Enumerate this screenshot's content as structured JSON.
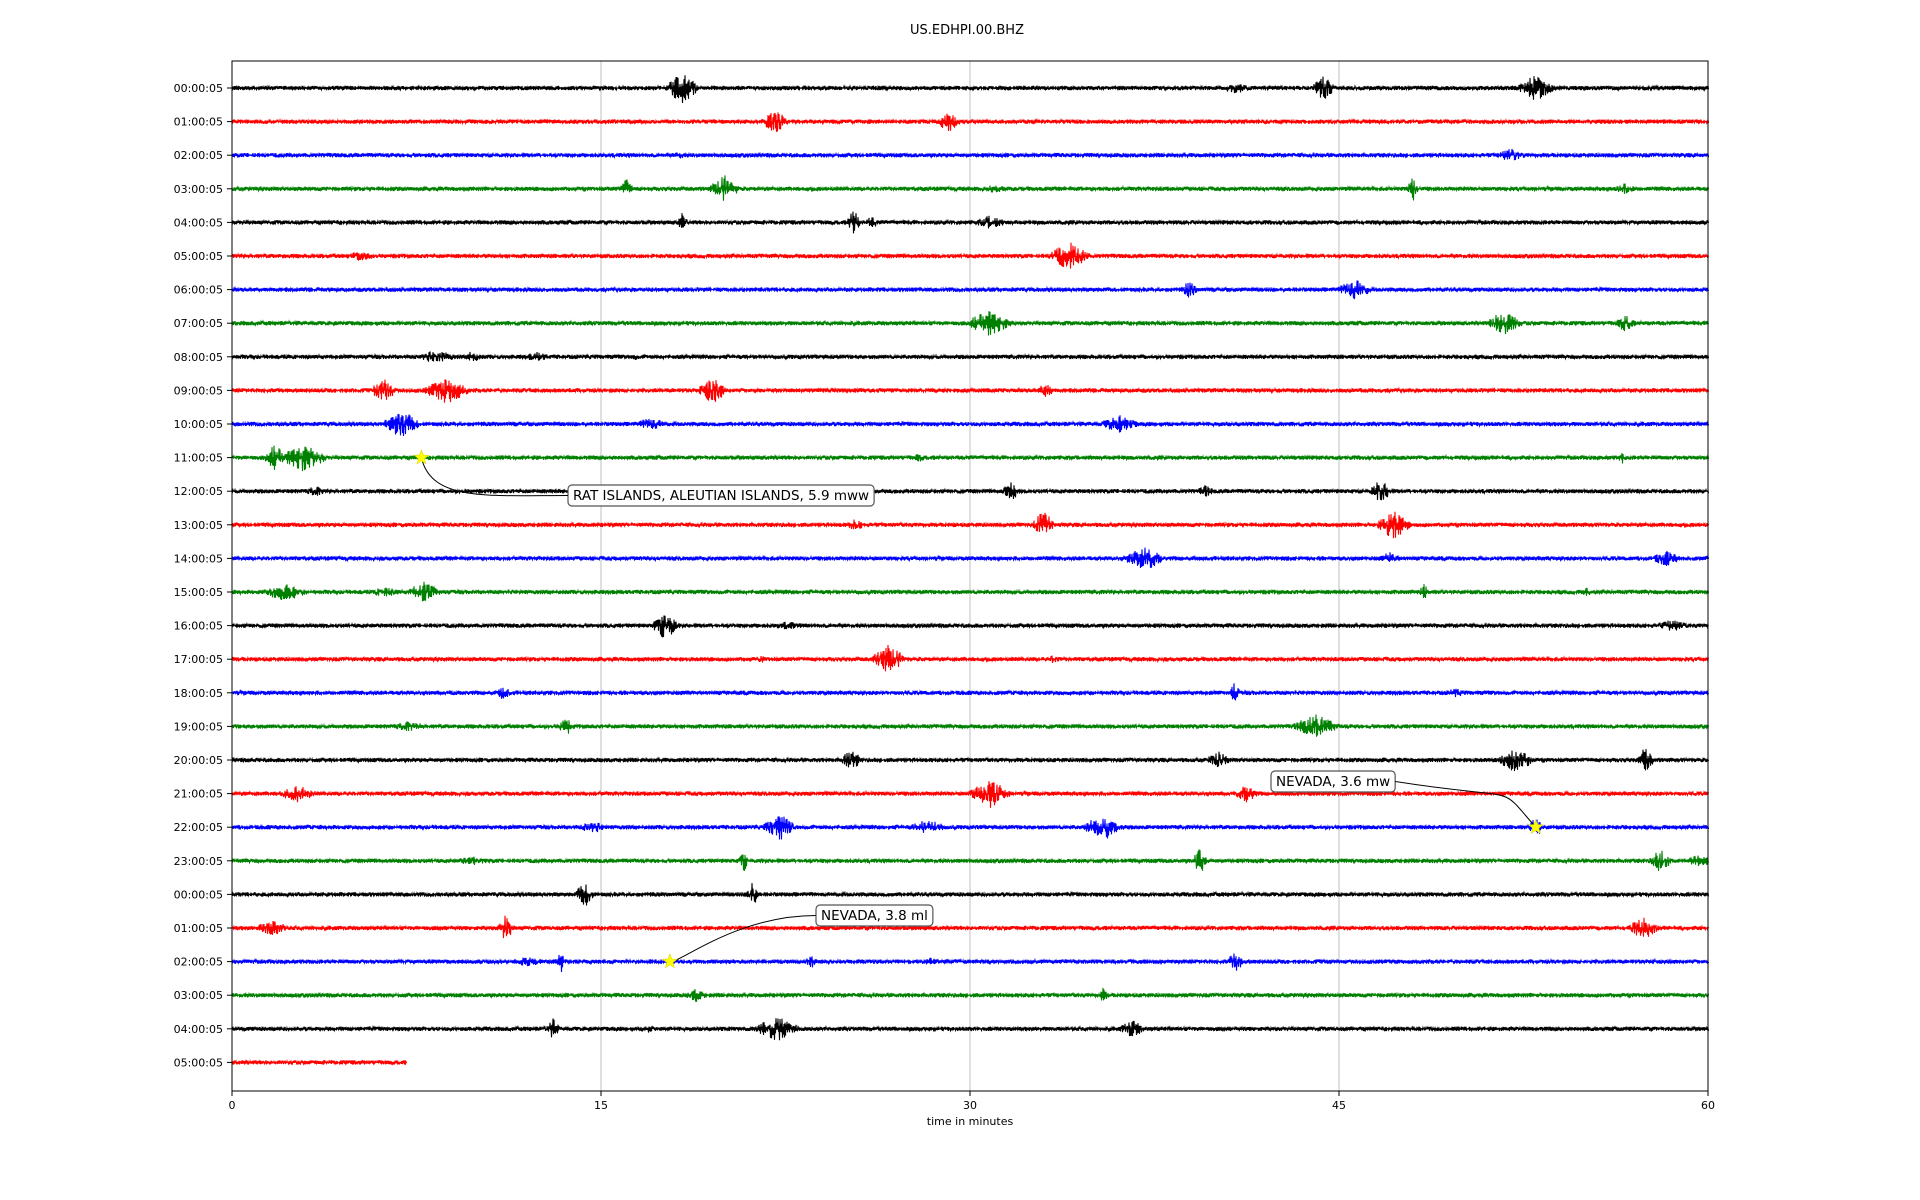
{
  "chart_data": {
    "type": "line",
    "title": "US.EDHPI.00.BHZ",
    "xlabel": "time in minutes",
    "ylabel": "",
    "xlim": [
      0,
      60
    ],
    "x_ticks": [
      0,
      15,
      30,
      45,
      60
    ],
    "grid": "vertical lines at 15, 30 and 45 minutes",
    "trace_colors": [
      "#000000",
      "#ff0000",
      "#0000ff",
      "#008000"
    ],
    "rows": [
      {
        "label": "00:00:05",
        "end_minute": 60
      },
      {
        "label": "01:00:05",
        "end_minute": 60
      },
      {
        "label": "02:00:05",
        "end_minute": 60
      },
      {
        "label": "03:00:05",
        "end_minute": 60
      },
      {
        "label": "04:00:05",
        "end_minute": 60
      },
      {
        "label": "05:00:05",
        "end_minute": 60
      },
      {
        "label": "06:00:05",
        "end_minute": 60
      },
      {
        "label": "07:00:05",
        "end_minute": 60
      },
      {
        "label": "08:00:05",
        "end_minute": 60
      },
      {
        "label": "09:00:05",
        "end_minute": 60
      },
      {
        "label": "10:00:05",
        "end_minute": 60
      },
      {
        "label": "11:00:05",
        "end_minute": 60
      },
      {
        "label": "12:00:05",
        "end_minute": 60
      },
      {
        "label": "13:00:05",
        "end_minute": 60
      },
      {
        "label": "14:00:05",
        "end_minute": 60
      },
      {
        "label": "15:00:05",
        "end_minute": 60
      },
      {
        "label": "16:00:05",
        "end_minute": 60
      },
      {
        "label": "17:00:05",
        "end_minute": 60
      },
      {
        "label": "18:00:05",
        "end_minute": 60
      },
      {
        "label": "19:00:05",
        "end_minute": 60
      },
      {
        "label": "20:00:05",
        "end_minute": 60
      },
      {
        "label": "21:00:05",
        "end_minute": 60
      },
      {
        "label": "22:00:05",
        "end_minute": 60
      },
      {
        "label": "23:00:05",
        "end_minute": 60
      },
      {
        "label": "00:00:05",
        "end_minute": 60
      },
      {
        "label": "01:00:05",
        "end_minute": 60
      },
      {
        "label": "02:00:05",
        "end_minute": 60
      },
      {
        "label": "03:00:05",
        "end_minute": 60
      },
      {
        "label": "04:00:05",
        "end_minute": 60
      },
      {
        "label": "05:00:05",
        "end_minute": 7.1
      }
    ],
    "events": [
      {
        "text": "RAT ISLANDS, ALEUTIAN ISLANDS, 5.9 mww",
        "row": 11,
        "minute": 7.7
      },
      {
        "text": "NEVADA, 3.6 mw",
        "row": 22,
        "minute": 53.0
      },
      {
        "text": "NEVADA, 3.8 ml",
        "row": 26,
        "minute": 17.8
      }
    ],
    "event_marker_color": "#ffff00"
  }
}
